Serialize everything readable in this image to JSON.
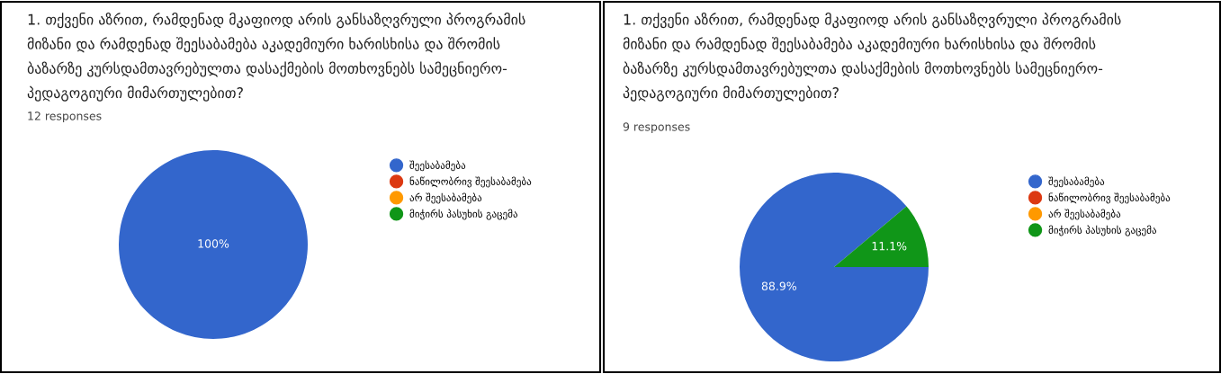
{
  "chart_data": [
    {
      "type": "pie",
      "title": "1. თქვენი აზრით, რამდენად მკაფიოდ არის განსაზღვრული პროგრამის\nმიზანი და რამდენად შეესაბამება აკადემიური ხარისხისა და შრომის\nბაზარზე კურსდამთავრებულთა დასაქმების მოთხოვნებს სამეცნიერო-\nპედაგოგიური მიმართულებით?",
      "subtitle": "12 responses",
      "categories": [
        "შეესაბამება",
        "ნაწილობრივ შეესაბამება",
        "არ შეესაბამება",
        "მიჭირს პასუხის გაცემა"
      ],
      "values": [
        100,
        0,
        0,
        0
      ],
      "colors": [
        "#3366cc",
        "#dc3912",
        "#ff9900",
        "#109618"
      ],
      "value_labels": [
        "100%",
        null,
        null,
        null
      ],
      "legend": "right"
    },
    {
      "type": "pie",
      "title": "1. თქვენი აზრით, რამდენად მკაფიოდ არის განსაზღვრული პროგრამის\nმიზანი და რამდენად შეესაბამება აკადემიური ხარისხისა და შრომის\nბაზარზე კურსდამთავრებულთა დასაქმების მოთხოვნებს სამეცნიერო-\nპედაგოგიური მიმართულებით?",
      "subtitle": "9 responses",
      "categories": [
        "შეესაბამება",
        "ნაწილობრივ შეესაბამება",
        "არ შეესაბამება",
        "მიჭირს პასუხის გაცემა"
      ],
      "values": [
        88.9,
        0,
        0,
        11.1
      ],
      "colors": [
        "#3366cc",
        "#dc3912",
        "#ff9900",
        "#109618"
      ],
      "value_labels": [
        "88.9%",
        null,
        null,
        "11.1%"
      ],
      "legend": "right"
    }
  ]
}
